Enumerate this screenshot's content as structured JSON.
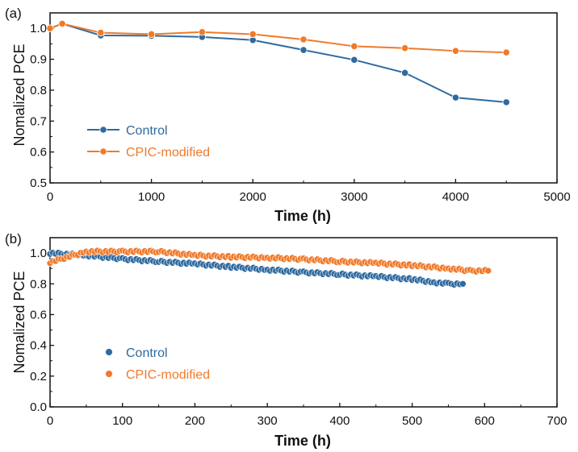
{
  "colors": {
    "control": "#2f6aa0",
    "cpic": "#f07a2a",
    "axis": "#111111"
  },
  "chart_data": [
    {
      "panel": "(a)",
      "type": "line",
      "xlabel": "Time (h)",
      "ylabel": "Nomalized PCE",
      "xlim": [
        0,
        5000
      ],
      "ylim": [
        0.5,
        1.05
      ],
      "xticks": [
        0,
        1000,
        2000,
        3000,
        4000,
        5000
      ],
      "yticks": [
        0.5,
        0.6,
        0.7,
        0.8,
        0.9,
        1.0
      ],
      "ytick_labels": [
        "0.5",
        "0.6",
        "0.7",
        "0.8",
        "0.9",
        "1.0"
      ],
      "legend_position": "lower-left",
      "series": [
        {
          "name": "Control",
          "color_key": "control",
          "x": [
            0,
            120,
            500,
            1000,
            1500,
            2000,
            2500,
            3000,
            3500,
            4000,
            4500
          ],
          "y": [
            1.0,
            1.015,
            0.977,
            0.976,
            0.972,
            0.962,
            0.93,
            0.898,
            0.856,
            0.776,
            0.761
          ]
        },
        {
          "name": "CPIC-modified",
          "color_key": "cpic",
          "x": [
            0,
            120,
            500,
            1000,
            1500,
            2000,
            2500,
            3000,
            3500,
            4000,
            4500
          ],
          "y": [
            1.0,
            1.015,
            0.986,
            0.981,
            0.988,
            0.981,
            0.964,
            0.942,
            0.936,
            0.927,
            0.922
          ]
        }
      ]
    },
    {
      "panel": "(b)",
      "type": "scatter",
      "xlabel": "Time (h)",
      "ylabel": "Nomalized PCE",
      "xlim": [
        0,
        700
      ],
      "ylim": [
        0.0,
        1.1
      ],
      "xticks": [
        0,
        100,
        200,
        300,
        400,
        500,
        600,
        700
      ],
      "yticks": [
        0.0,
        0.2,
        0.4,
        0.6,
        0.8,
        1.0
      ],
      "ytick_labels": [
        "0.0",
        "0.2",
        "0.4",
        "0.6",
        "0.8",
        "1.0"
      ],
      "legend_position": "lower-left",
      "series": [
        {
          "name": "Control",
          "color_key": "control",
          "x": [
            0,
            50,
            100,
            150,
            200,
            250,
            300,
            350,
            400,
            450,
            500,
            530,
            550,
            570
          ],
          "y": [
            1.0,
            0.985,
            0.962,
            0.945,
            0.93,
            0.91,
            0.892,
            0.875,
            0.862,
            0.848,
            0.83,
            0.81,
            0.8,
            0.8
          ]
        },
        {
          "name": "CPIC-modified",
          "color_key": "cpic",
          "x": [
            0,
            50,
            100,
            150,
            200,
            250,
            300,
            350,
            400,
            450,
            500,
            550,
            580,
            605
          ],
          "y": [
            0.94,
            1.01,
            1.01,
            1.01,
            0.985,
            0.975,
            0.97,
            0.96,
            0.945,
            0.935,
            0.92,
            0.9,
            0.885,
            0.885
          ]
        }
      ]
    }
  ]
}
